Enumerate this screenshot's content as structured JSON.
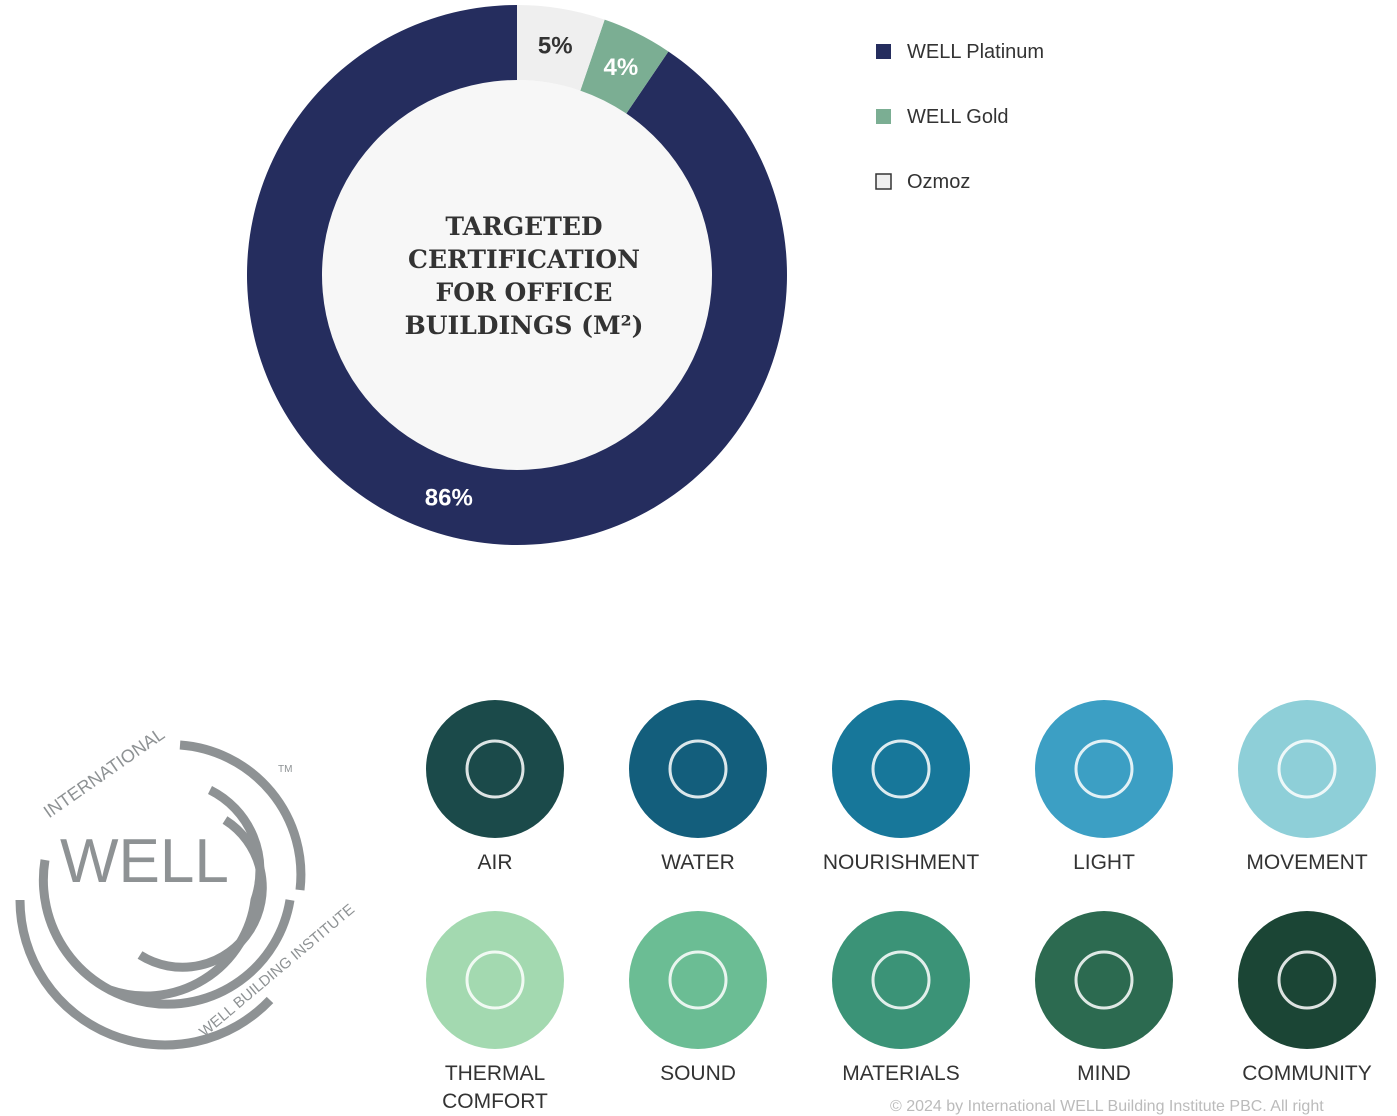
{
  "chart_data": {
    "type": "donut",
    "title": "TARGETED CERTIFICATION FOR OFFICE BUILDINGS (M²)",
    "categories": [
      "WELL Platinum",
      "WELL Gold",
      "Ozmoz"
    ],
    "values": [
      86,
      4,
      5
    ],
    "value_labels": [
      "86%",
      "4%",
      "5%"
    ],
    "colors": [
      "#252d5e",
      "#7bae93",
      "#efefef"
    ],
    "legend": "right"
  },
  "logo": {
    "ring_text": "INTERNATIONAL",
    "name": "WELL",
    "sub_text": "WELL BUILDING INSTITUTE",
    "mark": "TM"
  },
  "concepts": [
    "AIR",
    "WATER",
    "NOURISHMENT",
    "LIGHT",
    "MOVEMENT",
    "THERMAL COMFORT",
    "SOUND",
    "MATERIALS",
    "MIND",
    "COMMUNITY"
  ],
  "footer": "© 2024 by International WELL Building Institute PBC. All right"
}
